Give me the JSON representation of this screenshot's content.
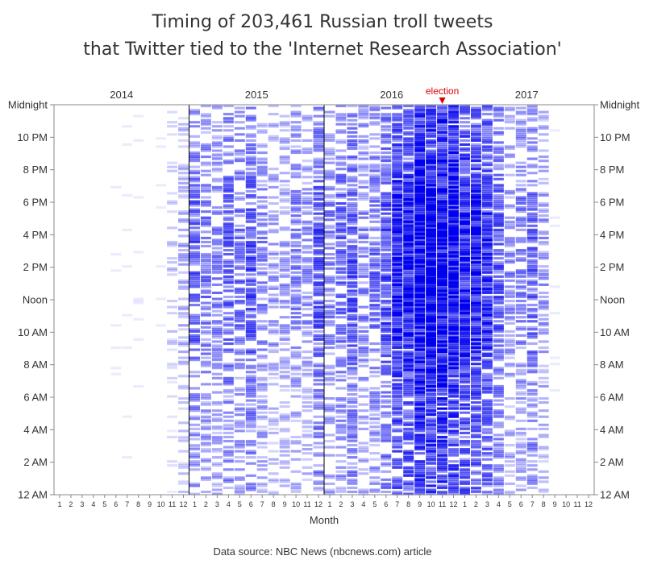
{
  "chart_data": {
    "type": "heatmap",
    "title_line1": "Timing of 203,461 Russian troll tweets",
    "title_line2": "that Twitter tied to the 'Internet Research Association'",
    "xlabel": "Month",
    "source": "Data source: NBC News (nbcnews.com) article",
    "years": [
      "2014",
      "2015",
      "2016",
      "2017"
    ],
    "month_labels": [
      "1",
      "2",
      "3",
      "4",
      "5",
      "6",
      "7",
      "8",
      "9",
      "10",
      "11",
      "12"
    ],
    "hour_labels": [
      "12 AM",
      "2 AM",
      "4 AM",
      "6 AM",
      "8 AM",
      "10 AM",
      "Noon",
      "2 PM",
      "4 PM",
      "6 PM",
      "8 PM",
      "10 PM",
      "Midnight"
    ],
    "annotation": {
      "label": "election",
      "year": "2016",
      "month": 11,
      "color": "#dd0000"
    },
    "year_separators": [
      "2015",
      "2016"
    ],
    "colors": {
      "cell": "#0000ee",
      "axis": "#888888",
      "text": "#333333"
    },
    "intensity_by_month": [
      0,
      0,
      0,
      0,
      0,
      0.01,
      0.02,
      0.01,
      0,
      0.01,
      0.2,
      0.3,
      0.55,
      0.5,
      0.45,
      0.55,
      0.5,
      0.6,
      0.45,
      0.35,
      0.35,
      0.45,
      0.4,
      0.6,
      0.45,
      0.55,
      0.6,
      0.45,
      0.5,
      0.65,
      0.85,
      0.85,
      0.97,
      0.97,
      1.0,
      0.95,
      0.85,
      0.8,
      0.75,
      0.6,
      0.4,
      0.45,
      0.55,
      0.4,
      0.03,
      0,
      0,
      0
    ]
  }
}
